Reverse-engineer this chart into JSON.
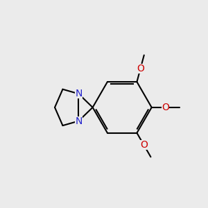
{
  "bg_color": "#ebebeb",
  "bond_color": "#000000",
  "N_color": "#2222cc",
  "O_color": "#cc0000",
  "line_width": 1.5,
  "font_size": 10,
  "label_fontsize": 10,
  "me_fontsize": 9,
  "xlim": [
    0.5,
    9.5
  ],
  "ylim": [
    1.5,
    8.5
  ],
  "figsize": [
    3.0,
    3.0
  ],
  "dpi": 100
}
